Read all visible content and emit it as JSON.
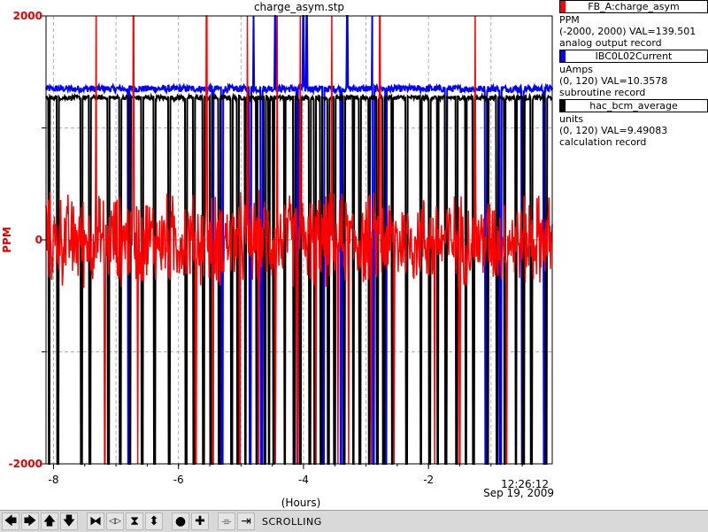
{
  "window": {
    "title": "charge_asym.stp"
  },
  "chart_data": {
    "type": "line",
    "title": "charge_asym.stp",
    "xlabel": "(Hours)",
    "ylabel": "PPM",
    "xlim": [
      -8.12,
      -0.02
    ],
    "ylim": [
      -2000,
      2000
    ],
    "y_tick_labels": [
      "2000",
      "0",
      "-2000"
    ],
    "x_tick_labels": [
      "-8",
      "-6",
      "-4",
      "-2"
    ],
    "x_tick_values": [
      -8,
      -6,
      -4,
      -2
    ],
    "time_label": "12:26:12",
    "date_label": "Sep 19, 2009",
    "grid": true,
    "colors": {
      "axis_y": "#e00000",
      "grid": "#b0b0b0"
    },
    "series": [
      {
        "name": "FB_A:charge_asym",
        "color": "#ff0000",
        "units": "PPM",
        "range": "(-2000, 2000) VAL=139.501",
        "record_type": "analog output record",
        "baseline": 0,
        "noise_amplitude": 300,
        "spike_up_x": [
          -7.32,
          -6.72,
          -5.55,
          -4.9,
          -4.42,
          -4.05,
          -3.55,
          -2.78,
          -1.25
        ],
        "spike_down_x": [
          -7.18,
          -6.65,
          -5.72,
          -5.45,
          -5.02,
          -4.72,
          -4.45,
          -4.1,
          -3.8,
          -3.45,
          -3.28,
          -2.92,
          -2.55,
          -1.9,
          -1.5,
          -0.75
        ]
      },
      {
        "name": "IBC0L02Current",
        "color": "#0000ff",
        "units": "uAmps",
        "range": "(0, 120) VAL=10.3578",
        "record_type": "subroutine record",
        "level": 1350,
        "drop_x": [
          -6.8,
          -5.45,
          -5.3,
          -4.85,
          -4.67,
          -4.1,
          -3.68,
          -3.4,
          -2.88,
          -2.68,
          -1.72,
          -1.08,
          -0.85,
          -0.5,
          -0.15
        ],
        "spike_up_x": [
          -5.3,
          -4.8,
          -4.67,
          -4.45,
          -4.0,
          -3.95,
          -3.3,
          -2.9
        ]
      },
      {
        "name": "hac_bcm_average",
        "color": "#000000",
        "units": "units",
        "range": "(0, 120) VAL=9.49083",
        "record_type": "calculation record",
        "level": 1270,
        "drop_x": [
          -8.07,
          -7.93,
          -7.55,
          -7.42,
          -7.12,
          -6.93,
          -6.78,
          -6.58,
          -6.38,
          -6.15,
          -5.88,
          -5.75,
          -5.6,
          -5.48,
          -5.35,
          -5.15,
          -5.05,
          -4.93,
          -4.75,
          -4.62,
          -4.55,
          -4.48,
          -4.3,
          -4.15,
          -4.05,
          -3.9,
          -3.82,
          -3.72,
          -3.6,
          -3.5,
          -3.35,
          -3.2,
          -3.1,
          -2.95,
          -2.82,
          -2.72,
          -2.58,
          -2.35,
          -2.12,
          -1.98,
          -1.85,
          -1.72,
          -1.55,
          -1.4,
          -1.28,
          -1.05,
          -0.9,
          -0.78,
          -0.6,
          -0.48,
          -0.35,
          -0.12
        ]
      }
    ]
  },
  "legend": [
    {
      "name": "FB_A:charge_asym",
      "color": "#ff0000",
      "units": "PPM",
      "range": "(-2000, 2000) VAL=139.501",
      "record": "analog output record"
    },
    {
      "name": "IBC0L02Current",
      "color": "#0000ff",
      "units": "uAmps",
      "range": "(0, 120) VAL=10.3578",
      "record": "subroutine record"
    },
    {
      "name": "hac_bcm_average",
      "color": "#000000",
      "units": "units",
      "range": "(0, 120) VAL=9.49083",
      "record": "calculation record"
    }
  ],
  "toolbar": {
    "buttons": [
      {
        "name": "pan-left-button",
        "glyph": "🡄"
      },
      {
        "name": "pan-right-button",
        "glyph": "🡆"
      },
      {
        "name": "pan-up-button",
        "glyph": "🡅"
      },
      {
        "name": "pan-down-button",
        "glyph": "🡇"
      },
      {
        "name": "zoom-in-x-button",
        "glyph": "⧓"
      },
      {
        "name": "zoom-out-x-button",
        "glyph": "◁▷"
      },
      {
        "name": "zoom-in-y-button",
        "glyph": "⧗"
      },
      {
        "name": "zoom-out-y-button",
        "glyph": "⬍"
      },
      {
        "name": "autoscale-button",
        "glyph": "●"
      },
      {
        "name": "add-button",
        "glyph": "✚"
      },
      {
        "name": "zoom-box-button",
        "glyph": "⌯"
      },
      {
        "name": "scroll-mode-button",
        "glyph": "⇥"
      }
    ],
    "status": "SCROLLING"
  }
}
